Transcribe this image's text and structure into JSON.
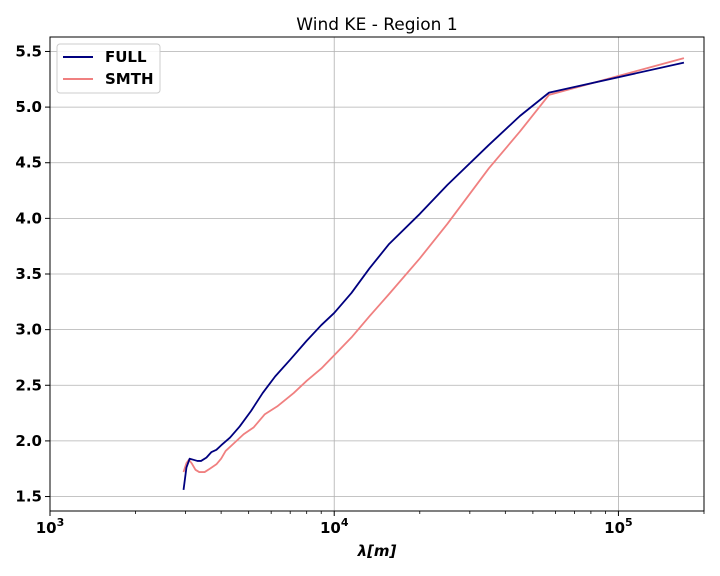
{
  "chart_data": {
    "type": "line",
    "title": "Wind KE - Region 1",
    "xlabel": "λ[m]",
    "ylabel": "",
    "xscale": "log",
    "xlim": [
      1000,
      200000
    ],
    "ylim": [
      1.37,
      5.63
    ],
    "grid": true,
    "legend_position": "top-left",
    "xtick_labels": [
      {
        "value": 1000,
        "base": "10",
        "exp": "3"
      },
      {
        "value": 10000,
        "base": "10",
        "exp": "4"
      },
      {
        "value": 100000,
        "base": "10",
        "exp": "5"
      }
    ],
    "yticks": [
      1.5,
      2.0,
      2.5,
      3.0,
      3.5,
      4.0,
      4.5,
      5.0,
      5.5
    ],
    "ytick_labels": [
      "1.5",
      "2.0",
      "2.5",
      "3.0",
      "3.5",
      "4.0",
      "4.5",
      "5.0",
      "5.5"
    ],
    "series": [
      {
        "name": "FULL",
        "color": "#00007f",
        "points": [
          [
            2950,
            1.56
          ],
          [
            3020,
            1.76
          ],
          [
            3100,
            1.84
          ],
          [
            3200,
            1.83
          ],
          [
            3300,
            1.82
          ],
          [
            3400,
            1.82
          ],
          [
            3550,
            1.85
          ],
          [
            3700,
            1.9
          ],
          [
            3850,
            1.92
          ],
          [
            4000,
            1.96
          ],
          [
            4300,
            2.03
          ],
          [
            4650,
            2.13
          ],
          [
            5100,
            2.27
          ],
          [
            5600,
            2.43
          ],
          [
            6200,
            2.58
          ],
          [
            7000,
            2.73
          ],
          [
            8000,
            2.9
          ],
          [
            9000,
            3.04
          ],
          [
            10000,
            3.15
          ],
          [
            11500,
            3.33
          ],
          [
            13300,
            3.55
          ],
          [
            15600,
            3.77
          ],
          [
            20000,
            4.04
          ],
          [
            25000,
            4.3
          ],
          [
            35000,
            4.66
          ],
          [
            45000,
            4.92
          ],
          [
            57000,
            5.13
          ],
          [
            170000,
            5.4
          ]
        ]
      },
      {
        "name": "SMTH",
        "color": "#f08080",
        "points": [
          [
            2950,
            1.72
          ],
          [
            3020,
            1.8
          ],
          [
            3080,
            1.83
          ],
          [
            3150,
            1.8
          ],
          [
            3250,
            1.74
          ],
          [
            3350,
            1.72
          ],
          [
            3500,
            1.72
          ],
          [
            3650,
            1.75
          ],
          [
            3850,
            1.79
          ],
          [
            4000,
            1.84
          ],
          [
            4150,
            1.91
          ],
          [
            4400,
            1.97
          ],
          [
            4800,
            2.06
          ],
          [
            5200,
            2.12
          ],
          [
            5700,
            2.24
          ],
          [
            6300,
            2.31
          ],
          [
            7200,
            2.43
          ],
          [
            8000,
            2.54
          ],
          [
            9000,
            2.65
          ],
          [
            10000,
            2.77
          ],
          [
            11500,
            2.93
          ],
          [
            13300,
            3.12
          ],
          [
            15600,
            3.32
          ],
          [
            20000,
            3.64
          ],
          [
            25000,
            3.95
          ],
          [
            35000,
            4.45
          ],
          [
            45000,
            4.78
          ],
          [
            57000,
            5.11
          ],
          [
            170000,
            5.44
          ]
        ]
      }
    ]
  }
}
